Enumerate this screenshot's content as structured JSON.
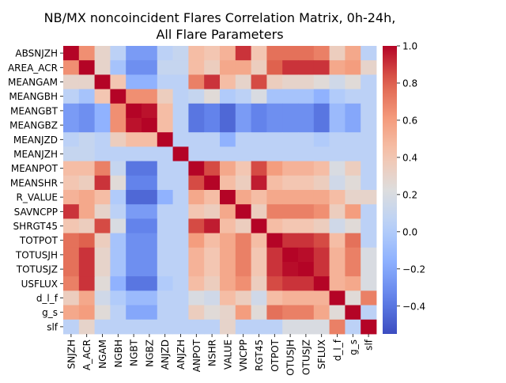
{
  "chart_data": {
    "type": "heatmap",
    "title_line1": "NB/MX noncoincident Flares Correlation Matrix, 0h-24h,",
    "title_line2": "All Flare Parameters",
    "row_labels": [
      "ABSNJZH",
      "AREA_ACR",
      "MEANGAM",
      "MEANGBH",
      "MEANGBT",
      "MEANGBZ",
      "MEANJZD",
      "MEANJZH",
      "MEANPOT",
      "MEANSHR",
      "R_VALUE",
      "SAVNCPP",
      "SHRGT45",
      "TOTPOT",
      "TOTUSJH",
      "TOTUSJZ",
      "USFLUX",
      "d_l_f",
      "g_s",
      "slf"
    ],
    "col_labels_visible": [
      "SNJZH",
      "A_ACR",
      "NGAM",
      "NGBH",
      "NGBT",
      "NGBZ",
      "ANJZD",
      "ANJZH",
      "ANPOT",
      "NSHR",
      "VALUE",
      "VNCPP",
      "RGT45",
      "OTPOT",
      "OTUSJH",
      "OTUSJZ",
      "SFLUX",
      "d_l_f",
      "g_s",
      "slf"
    ],
    "colorscale": "coolwarm",
    "vmin": -0.55,
    "vmax": 1.0,
    "colorbar_ticks": [
      "1.0",
      "0.8",
      "0.6",
      "0.4",
      "0.2",
      "0.0",
      "−0.2",
      "−0.4"
    ],
    "colorbar_tick_values": [
      1.0,
      0.8,
      0.6,
      0.4,
      0.2,
      0.0,
      -0.2,
      -0.4
    ],
    "values": [
      [
        1.0,
        0.65,
        0.3,
        0.05,
        -0.25,
        -0.25,
        0.05,
        0.1,
        0.45,
        0.4,
        0.5,
        0.9,
        0.4,
        0.75,
        0.75,
        0.75,
        0.7,
        0.35,
        0.55,
        0.05
      ],
      [
        0.65,
        1.0,
        0.3,
        -0.05,
        -0.3,
        -0.3,
        0.1,
        0.1,
        0.45,
        0.35,
        0.55,
        0.55,
        0.35,
        0.8,
        0.9,
        0.9,
        0.9,
        0.55,
        0.6,
        0.3
      ],
      [
        0.3,
        0.3,
        1.0,
        0.4,
        -0.15,
        -0.15,
        0.05,
        0.05,
        0.7,
        0.9,
        0.45,
        0.3,
        0.85,
        0.35,
        0.3,
        0.3,
        0.25,
        0.15,
        0.25,
        0.05
      ],
      [
        0.05,
        -0.05,
        0.4,
        1.0,
        0.65,
        0.65,
        0.35,
        0.05,
        0.1,
        0.25,
        0.0,
        0.05,
        0.2,
        -0.05,
        -0.05,
        -0.05,
        -0.15,
        0.0,
        0.05,
        0.05
      ],
      [
        -0.25,
        -0.3,
        -0.15,
        0.65,
        1.0,
        0.97,
        0.45,
        0.05,
        -0.4,
        -0.35,
        -0.45,
        -0.25,
        -0.35,
        -0.3,
        -0.3,
        -0.3,
        -0.4,
        -0.1,
        -0.2,
        0.05
      ],
      [
        -0.25,
        -0.3,
        -0.15,
        0.65,
        0.97,
        1.0,
        0.45,
        0.05,
        -0.4,
        -0.35,
        -0.45,
        -0.25,
        -0.35,
        -0.3,
        -0.3,
        -0.3,
        -0.4,
        -0.1,
        -0.2,
        0.05
      ],
      [
        0.05,
        0.1,
        0.05,
        0.35,
        0.45,
        0.45,
        1.0,
        0.05,
        0.05,
        0.05,
        -0.15,
        0.05,
        0.05,
        0.05,
        0.05,
        0.05,
        0.0,
        0.05,
        0.05,
        0.05
      ],
      [
        0.1,
        0.1,
        0.05,
        0.05,
        0.05,
        0.05,
        0.05,
        1.0,
        0.05,
        0.05,
        0.05,
        0.05,
        0.05,
        0.05,
        0.05,
        0.05,
        0.05,
        0.05,
        0.05,
        0.05
      ],
      [
        0.45,
        0.45,
        0.7,
        0.1,
        -0.4,
        -0.4,
        0.05,
        0.05,
        1.0,
        0.85,
        0.55,
        0.4,
        0.85,
        0.6,
        0.5,
        0.5,
        0.45,
        0.2,
        0.35,
        0.05
      ],
      [
        0.4,
        0.35,
        0.9,
        0.25,
        -0.35,
        -0.35,
        0.05,
        0.05,
        0.85,
        1.0,
        0.45,
        0.35,
        0.95,
        0.45,
        0.4,
        0.4,
        0.35,
        0.15,
        0.25,
        0.05
      ],
      [
        0.5,
        0.55,
        0.45,
        0.0,
        -0.45,
        -0.45,
        -0.15,
        0.05,
        0.55,
        0.45,
        1.0,
        0.55,
        0.45,
        0.55,
        0.55,
        0.55,
        0.55,
        0.45,
        0.3,
        0.3
      ],
      [
        0.9,
        0.55,
        0.3,
        0.05,
        -0.25,
        -0.25,
        0.05,
        0.05,
        0.4,
        0.35,
        0.55,
        1.0,
        0.35,
        0.7,
        0.7,
        0.7,
        0.65,
        0.35,
        0.6,
        0.05
      ],
      [
        0.4,
        0.35,
        0.85,
        0.2,
        -0.35,
        -0.35,
        0.05,
        0.05,
        0.85,
        0.95,
        0.45,
        0.35,
        1.0,
        0.45,
        0.4,
        0.4,
        0.35,
        0.15,
        0.25,
        0.05
      ],
      [
        0.75,
        0.8,
        0.35,
        -0.05,
        -0.3,
        -0.3,
        0.05,
        0.05,
        0.6,
        0.45,
        0.55,
        0.7,
        0.45,
        1.0,
        0.9,
        0.9,
        0.85,
        0.45,
        0.75,
        0.05
      ],
      [
        0.75,
        0.9,
        0.3,
        -0.05,
        -0.3,
        -0.3,
        0.05,
        0.05,
        0.5,
        0.4,
        0.55,
        0.7,
        0.4,
        0.9,
        1.0,
        0.98,
        0.9,
        0.5,
        0.7,
        0.2
      ],
      [
        0.75,
        0.9,
        0.3,
        -0.05,
        -0.3,
        -0.3,
        0.05,
        0.05,
        0.5,
        0.4,
        0.55,
        0.7,
        0.4,
        0.9,
        0.98,
        1.0,
        0.9,
        0.5,
        0.7,
        0.2
      ],
      [
        0.7,
        0.9,
        0.25,
        -0.15,
        -0.4,
        -0.4,
        0.0,
        0.05,
        0.45,
        0.35,
        0.55,
        0.65,
        0.35,
        0.85,
        0.9,
        0.9,
        1.0,
        0.5,
        0.55,
        0.2
      ],
      [
        0.35,
        0.55,
        0.15,
        0.0,
        -0.1,
        -0.1,
        0.05,
        0.05,
        0.2,
        0.15,
        0.45,
        0.35,
        0.15,
        0.45,
        0.5,
        0.5,
        0.5,
        1.0,
        0.25,
        0.7
      ],
      [
        0.55,
        0.6,
        0.25,
        0.05,
        -0.2,
        -0.2,
        0.05,
        0.05,
        0.35,
        0.25,
        0.3,
        0.6,
        0.25,
        0.75,
        0.7,
        0.7,
        0.55,
        0.25,
        1.0,
        0.05
      ],
      [
        0.05,
        0.3,
        0.05,
        0.05,
        0.05,
        0.05,
        0.05,
        0.05,
        0.05,
        0.05,
        0.3,
        0.05,
        0.05,
        0.05,
        0.2,
        0.2,
        0.2,
        0.7,
        0.05,
        1.0
      ]
    ]
  }
}
